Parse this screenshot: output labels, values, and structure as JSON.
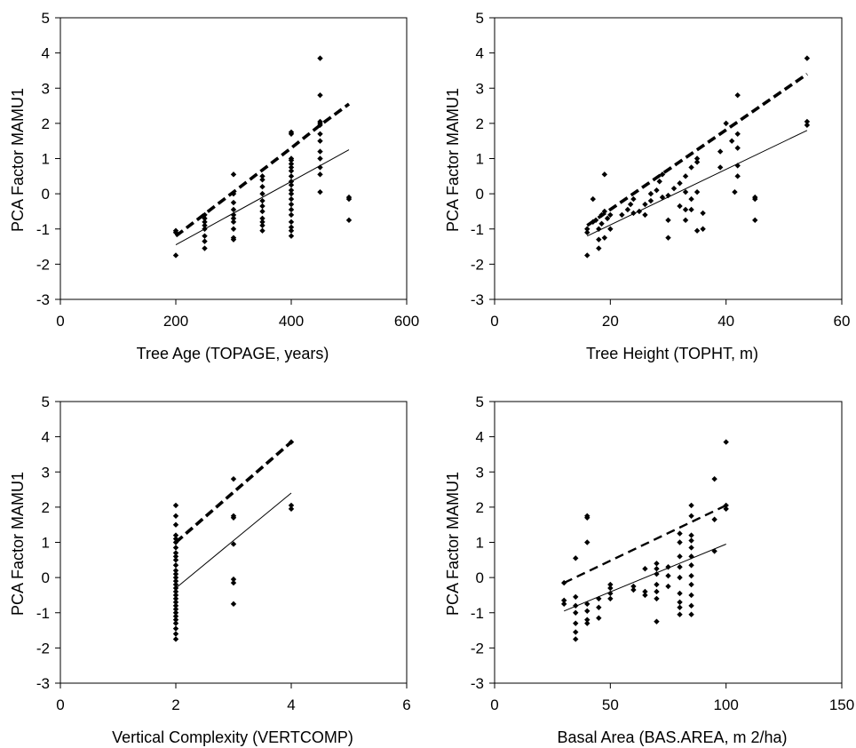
{
  "chart_data": [
    {
      "type": "scatter",
      "xlabel": "Tree Age (TOPAGE, years)",
      "ylabel": "PCA Factor MAMU1",
      "xlim": [
        0,
        600
      ],
      "ylim": [
        -3,
        5
      ],
      "xticks": [
        0,
        200,
        400,
        600
      ],
      "yticks": [
        -3,
        -2,
        -1,
        0,
        1,
        2,
        3,
        4,
        5
      ],
      "grid": false,
      "points": [
        [
          200,
          -1.75
        ],
        [
          200,
          -1.1
        ],
        [
          200,
          -1.05
        ],
        [
          250,
          -1.55
        ],
        [
          250,
          -1.35
        ],
        [
          250,
          -1.2
        ],
        [
          250,
          -1.0
        ],
        [
          250,
          -0.9
        ],
        [
          250,
          -0.8
        ],
        [
          250,
          -0.7
        ],
        [
          250,
          -0.6
        ],
        [
          300,
          -1.3
        ],
        [
          300,
          -1.25
        ],
        [
          300,
          -1.0
        ],
        [
          300,
          -0.8
        ],
        [
          300,
          -0.7
        ],
        [
          300,
          -0.6
        ],
        [
          300,
          -0.45
        ],
        [
          300,
          -0.25
        ],
        [
          300,
          0.0
        ],
        [
          300,
          0.55
        ],
        [
          350,
          -1.05
        ],
        [
          350,
          -0.9
        ],
        [
          350,
          -0.8
        ],
        [
          350,
          -0.7
        ],
        [
          350,
          -0.5
        ],
        [
          350,
          -0.35
        ],
        [
          350,
          -0.2
        ],
        [
          350,
          0.0
        ],
        [
          350,
          0.2
        ],
        [
          350,
          0.4
        ],
        [
          350,
          0.5
        ],
        [
          400,
          -1.2
        ],
        [
          400,
          -1.05
        ],
        [
          400,
          -0.95
        ],
        [
          400,
          -0.8
        ],
        [
          400,
          -0.6
        ],
        [
          400,
          -0.45
        ],
        [
          400,
          -0.3
        ],
        [
          400,
          -0.15
        ],
        [
          400,
          0.0
        ],
        [
          400,
          0.1
        ],
        [
          400,
          0.25
        ],
        [
          400,
          0.35
        ],
        [
          400,
          0.5
        ],
        [
          400,
          0.65
        ],
        [
          400,
          0.75
        ],
        [
          400,
          0.85
        ],
        [
          400,
          0.95
        ],
        [
          400,
          1.0
        ],
        [
          400,
          1.7
        ],
        [
          400,
          1.75
        ],
        [
          450,
          0.05
        ],
        [
          450,
          0.55
        ],
        [
          450,
          0.75
        ],
        [
          450,
          1.0
        ],
        [
          450,
          1.2
        ],
        [
          450,
          1.5
        ],
        [
          450,
          1.7
        ],
        [
          450,
          1.95
        ],
        [
          450,
          2.0
        ],
        [
          450,
          2.05
        ],
        [
          450,
          2.8
        ],
        [
          450,
          3.85
        ],
        [
          500,
          -0.75
        ],
        [
          500,
          -0.15
        ],
        [
          500,
          -0.1
        ]
      ],
      "fits": [
        {
          "style": "dashed-bold",
          "points": [
            [
              200,
              -1.2
            ],
            [
              400,
              1.3
            ],
            [
              450,
              1.95
            ],
            [
              500,
              2.55
            ]
          ]
        },
        {
          "style": "solid-thin",
          "points": [
            [
              200,
              -1.45
            ],
            [
              500,
              1.25
            ]
          ]
        }
      ]
    },
    {
      "type": "scatter",
      "xlabel": "Tree Height (TOPHT, m)",
      "ylabel": "PCA Factor MAMU1",
      "xlim": [
        0,
        60
      ],
      "ylim": [
        -3,
        5
      ],
      "xticks": [
        0,
        20,
        40,
        60
      ],
      "yticks": [
        -3,
        -2,
        -1,
        0,
        1,
        2,
        3,
        4,
        5
      ],
      "grid": false,
      "points": [
        [
          16,
          -1.75
        ],
        [
          16,
          -1.1
        ],
        [
          16,
          -1.0
        ],
        [
          17,
          -0.8
        ],
        [
          17,
          -0.15
        ],
        [
          17.5,
          -0.75
        ],
        [
          18,
          -1.55
        ],
        [
          18,
          -1.3
        ],
        [
          18,
          -1.0
        ],
        [
          18.5,
          -0.6
        ],
        [
          18.5,
          -0.85
        ],
        [
          19,
          -1.25
        ],
        [
          19,
          -0.5
        ],
        [
          19,
          0.55
        ],
        [
          19.5,
          -0.7
        ],
        [
          20,
          -1.0
        ],
        [
          20,
          -0.6
        ],
        [
          22,
          -0.6
        ],
        [
          23,
          -0.45
        ],
        [
          23.5,
          -0.3
        ],
        [
          24,
          -0.15
        ],
        [
          24,
          -0.55
        ],
        [
          25,
          -0.5
        ],
        [
          26,
          -0.6
        ],
        [
          26,
          -0.3
        ],
        [
          27,
          0.0
        ],
        [
          27,
          -0.2
        ],
        [
          28,
          0.1
        ],
        [
          28.5,
          0.35
        ],
        [
          29,
          -0.1
        ],
        [
          29,
          0.55
        ],
        [
          30,
          -1.25
        ],
        [
          30,
          -0.75
        ],
        [
          30,
          -0.05
        ],
        [
          31,
          0.15
        ],
        [
          32,
          -0.35
        ],
        [
          32,
          0.3
        ],
        [
          33,
          -0.45
        ],
        [
          33,
          -0.75
        ],
        [
          33,
          0.05
        ],
        [
          33,
          0.5
        ],
        [
          34,
          -0.15
        ],
        [
          34,
          -0.45
        ],
        [
          34,
          0.75
        ],
        [
          35,
          -1.05
        ],
        [
          35,
          0.05
        ],
        [
          35,
          0.9
        ],
        [
          35,
          1.0
        ],
        [
          36,
          -1.0
        ],
        [
          36,
          -0.55
        ],
        [
          39,
          0.75
        ],
        [
          39,
          1.2
        ],
        [
          40,
          2.0
        ],
        [
          41,
          1.5
        ],
        [
          41.5,
          0.05
        ],
        [
          42,
          0.5
        ],
        [
          42,
          0.8
        ],
        [
          42,
          1.3
        ],
        [
          42,
          1.7
        ],
        [
          42,
          2.8
        ],
        [
          45,
          -0.75
        ],
        [
          45,
          -0.15
        ],
        [
          45,
          -0.1
        ],
        [
          54,
          1.95
        ],
        [
          54,
          2.05
        ],
        [
          54,
          3.85
        ]
      ],
      "fits": [
        {
          "style": "dashed-bold",
          "points": [
            [
              16,
              -0.9
            ],
            [
              54,
              3.4
            ]
          ]
        },
        {
          "style": "solid-thin",
          "points": [
            [
              16,
              -1.2
            ],
            [
              54,
              1.8
            ]
          ]
        }
      ]
    },
    {
      "type": "scatter",
      "xlabel": "Vertical Complexity (VERTCOMP)",
      "ylabel": "PCA Factor MAMU1",
      "xlim": [
        0,
        6
      ],
      "ylim": [
        -3,
        5
      ],
      "xticks": [
        0,
        2,
        4,
        6
      ],
      "yticks": [
        -3,
        -2,
        -1,
        0,
        1,
        2,
        3,
        4,
        5
      ],
      "grid": false,
      "points": [
        [
          2,
          -1.75
        ],
        [
          2,
          -1.6
        ],
        [
          2,
          -1.45
        ],
        [
          2,
          -1.3
        ],
        [
          2,
          -1.2
        ],
        [
          2,
          -1.1
        ],
        [
          2,
          -1.0
        ],
        [
          2,
          -0.9
        ],
        [
          2,
          -0.8
        ],
        [
          2,
          -0.7
        ],
        [
          2,
          -0.6
        ],
        [
          2,
          -0.5
        ],
        [
          2,
          -0.4
        ],
        [
          2,
          -0.3
        ],
        [
          2,
          -0.2
        ],
        [
          2,
          -0.1
        ],
        [
          2,
          0.0
        ],
        [
          2,
          0.1
        ],
        [
          2,
          0.2
        ],
        [
          2,
          0.35
        ],
        [
          2,
          0.5
        ],
        [
          2,
          0.6
        ],
        [
          2,
          0.7
        ],
        [
          2,
          0.85
        ],
        [
          2,
          1.0
        ],
        [
          2,
          1.1
        ],
        [
          2,
          1.2
        ],
        [
          2,
          1.5
        ],
        [
          2,
          1.75
        ],
        [
          2,
          2.05
        ],
        [
          3,
          -0.75
        ],
        [
          3,
          -0.15
        ],
        [
          3,
          -0.05
        ],
        [
          3,
          0.95
        ],
        [
          3,
          1.7
        ],
        [
          3,
          1.75
        ],
        [
          3,
          2.8
        ],
        [
          4,
          1.95
        ],
        [
          4,
          2.05
        ],
        [
          4,
          3.85
        ]
      ],
      "fits": [
        {
          "style": "dashed-bold",
          "points": [
            [
              2,
              1.0
            ],
            [
              4,
              3.85
            ]
          ]
        },
        {
          "style": "solid-thin",
          "points": [
            [
              2,
              -0.3
            ],
            [
              4,
              2.4
            ]
          ]
        }
      ]
    },
    {
      "type": "scatter",
      "xlabel": "Basal Area (BAS.AREA, m 2/ha)",
      "ylabel": "PCA Factor MAMU1",
      "xlim": [
        0,
        150
      ],
      "ylim": [
        -3,
        5
      ],
      "xticks": [
        0,
        50,
        100,
        150
      ],
      "yticks": [
        -3,
        -2,
        -1,
        0,
        1,
        2,
        3,
        4,
        5
      ],
      "grid": false,
      "points": [
        [
          30,
          -0.75
        ],
        [
          30,
          -0.65
        ],
        [
          30,
          -0.15
        ],
        [
          35,
          -1.75
        ],
        [
          35,
          -1.55
        ],
        [
          35,
          -1.3
        ],
        [
          35,
          -1.0
        ],
        [
          35,
          -0.8
        ],
        [
          35,
          -0.55
        ],
        [
          35,
          0.55
        ],
        [
          40,
          -1.3
        ],
        [
          40,
          -1.2
        ],
        [
          40,
          -0.95
        ],
        [
          40,
          -0.75
        ],
        [
          40,
          1.0
        ],
        [
          40,
          1.7
        ],
        [
          40,
          1.75
        ],
        [
          45,
          -1.15
        ],
        [
          45,
          -0.85
        ],
        [
          45,
          -0.6
        ],
        [
          50,
          -0.6
        ],
        [
          50,
          -0.45
        ],
        [
          50,
          -0.3
        ],
        [
          50,
          -0.2
        ],
        [
          60,
          -0.35
        ],
        [
          60,
          -0.25
        ],
        [
          65,
          -0.5
        ],
        [
          65,
          0.25
        ],
        [
          65,
          -0.4
        ],
        [
          70,
          -1.25
        ],
        [
          70,
          -0.6
        ],
        [
          70,
          -0.4
        ],
        [
          70,
          -0.2
        ],
        [
          70,
          0.1
        ],
        [
          70,
          0.25
        ],
        [
          70,
          0.4
        ],
        [
          75,
          -0.25
        ],
        [
          75,
          0.05
        ],
        [
          75,
          0.3
        ],
        [
          80,
          -1.05
        ],
        [
          80,
          -0.85
        ],
        [
          80,
          -0.7
        ],
        [
          80,
          -0.45
        ],
        [
          80,
          0.0
        ],
        [
          80,
          0.3
        ],
        [
          80,
          0.6
        ],
        [
          80,
          1.0
        ],
        [
          80,
          1.25
        ],
        [
          85,
          -1.05
        ],
        [
          85,
          -0.8
        ],
        [
          85,
          -0.5
        ],
        [
          85,
          -0.2
        ],
        [
          85,
          0.05
        ],
        [
          85,
          0.35
        ],
        [
          85,
          0.6
        ],
        [
          85,
          0.85
        ],
        [
          85,
          1.05
        ],
        [
          85,
          1.2
        ],
        [
          85,
          1.75
        ],
        [
          85,
          2.05
        ],
        [
          95,
          0.75
        ],
        [
          95,
          1.65
        ],
        [
          95,
          2.8
        ],
        [
          100,
          1.95
        ],
        [
          100,
          2.05
        ],
        [
          100,
          3.85
        ]
      ],
      "fits": [
        {
          "style": "dashed-medium",
          "points": [
            [
              30,
              -0.15
            ],
            [
              100,
              2.05
            ]
          ]
        },
        {
          "style": "solid-thin",
          "points": [
            [
              30,
              -0.95
            ],
            [
              100,
              0.95
            ]
          ]
        }
      ]
    }
  ]
}
